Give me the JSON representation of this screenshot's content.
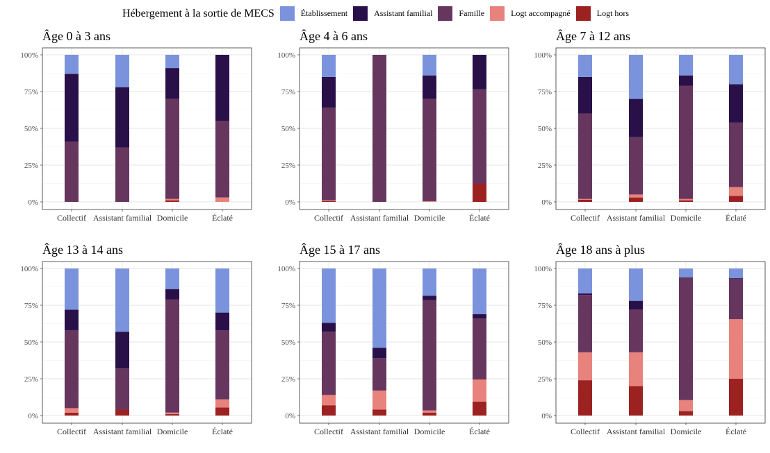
{
  "legend": {
    "title": "Hébergement à la sortie de MECS",
    "items": [
      {
        "label": "Établissement",
        "color": "#7b93dc"
      },
      {
        "label": "Assistant familial",
        "color": "#2a1049"
      },
      {
        "label": "Famille",
        "color": "#66365e"
      },
      {
        "label": "Logt accompagné",
        "color": "#e8827c"
      },
      {
        "label": "Logt hors",
        "color": "#9c2121"
      }
    ]
  },
  "chart_data": {
    "type": "bar",
    "stacked": true,
    "categories": [
      "Collectif",
      "Assistant familial",
      "Domicile",
      "Éclaté"
    ],
    "yticks": [
      "0%",
      "25%",
      "50%",
      "75%",
      "100%"
    ],
    "ylim": [
      0,
      100
    ],
    "grid": true,
    "legend_position": "top",
    "panels": [
      {
        "title": "Âge 0 à 3 ans",
        "segments": [
          {
            "Logt hors": 0,
            "Logt accompagné": 0,
            "Famille": 41,
            "Assistant familial": 46,
            "Établissement": 13
          },
          {
            "Logt hors": 0,
            "Logt accompagné": 0,
            "Famille": 37,
            "Assistant familial": 41,
            "Établissement": 22
          },
          {
            "Logt hors": 1,
            "Logt accompagné": 1,
            "Famille": 68,
            "Assistant familial": 21,
            "Établissement": 9
          },
          {
            "Logt hors": 0,
            "Logt accompagné": 3,
            "Famille": 52,
            "Assistant familial": 45,
            "Établissement": 0
          }
        ]
      },
      {
        "title": "Âge 4 à 6 ans",
        "segments": [
          {
            "Logt hors": 0.5,
            "Logt accompagné": 0.5,
            "Famille": 63,
            "Assistant familial": 21,
            "Établissement": 15
          },
          {
            "Logt hors": 0,
            "Logt accompagné": 0,
            "Famille": 100,
            "Assistant familial": 0,
            "Établissement": 0
          },
          {
            "Logt hors": 0,
            "Logt accompagné": 0.5,
            "Famille": 69.5,
            "Assistant familial": 16,
            "Établissement": 14
          },
          {
            "Logt hors": 12.5,
            "Logt accompagné": 0,
            "Famille": 64,
            "Assistant familial": 23.5,
            "Établissement": 0
          }
        ]
      },
      {
        "title": "Âge 7 à 12 ans",
        "segments": [
          {
            "Logt hors": 1.5,
            "Logt accompagné": 0.5,
            "Famille": 58,
            "Assistant familial": 25,
            "Établissement": 15
          },
          {
            "Logt hors": 3,
            "Logt accompagné": 2,
            "Famille": 39,
            "Assistant familial": 26,
            "Établissement": 30
          },
          {
            "Logt hors": 1,
            "Logt accompagné": 1,
            "Famille": 77,
            "Assistant familial": 7,
            "Établissement": 14
          },
          {
            "Logt hors": 4,
            "Logt accompagné": 6,
            "Famille": 44,
            "Assistant familial": 26,
            "Établissement": 20
          }
        ]
      },
      {
        "title": "Âge 13 à 14 ans",
        "segments": [
          {
            "Logt hors": 2,
            "Logt accompagné": 3,
            "Famille": 53,
            "Assistant familial": 14,
            "Établissement": 28
          },
          {
            "Logt hors": 4,
            "Logt accompagné": 0,
            "Famille": 28,
            "Assistant familial": 25,
            "Établissement": 43
          },
          {
            "Logt hors": 1,
            "Logt accompagné": 1,
            "Famille": 77,
            "Assistant familial": 7,
            "Établissement": 14
          },
          {
            "Logt hors": 5.5,
            "Logt accompagné": 5.5,
            "Famille": 47,
            "Assistant familial": 12,
            "Établissement": 30
          }
        ]
      },
      {
        "title": "Âge 15 à 17 ans",
        "segments": [
          {
            "Logt hors": 7,
            "Logt accompagné": 7,
            "Famille": 43,
            "Assistant familial": 6,
            "Établissement": 37
          },
          {
            "Logt hors": 4,
            "Logt accompagné": 13,
            "Famille": 22,
            "Assistant familial": 7,
            "Établissement": 54
          },
          {
            "Logt hors": 2,
            "Logt accompagné": 1.5,
            "Famille": 75,
            "Assistant familial": 3,
            "Établissement": 18.5
          },
          {
            "Logt hors": 9.5,
            "Logt accompagné": 15,
            "Famille": 41.5,
            "Assistant familial": 3,
            "Établissement": 31
          }
        ]
      },
      {
        "title": "Âge 18 ans à plus",
        "segments": [
          {
            "Logt hors": 24,
            "Logt accompagné": 19,
            "Famille": 39,
            "Assistant familial": 1,
            "Établissement": 17
          },
          {
            "Logt hors": 20,
            "Logt accompagné": 23,
            "Famille": 29,
            "Assistant familial": 6,
            "Établissement": 22
          },
          {
            "Logt hors": 3,
            "Logt accompagné": 7.5,
            "Famille": 83,
            "Assistant familial": 0.5,
            "Établissement": 6
          },
          {
            "Logt hors": 25,
            "Logt accompagné": 40.5,
            "Famille": 27.5,
            "Assistant familial": 0.5,
            "Établissement": 6.5
          }
        ]
      }
    ]
  }
}
